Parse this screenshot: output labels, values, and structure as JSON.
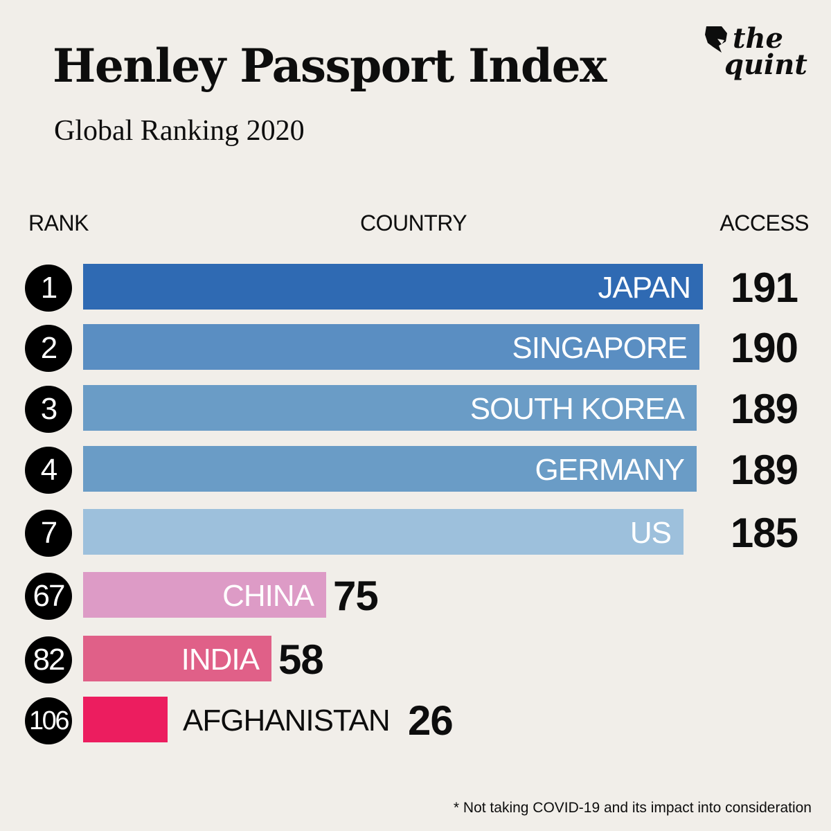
{
  "header": {
    "title": "Henley Passport Index",
    "subtitle": "Global Ranking 2020"
  },
  "logo": {
    "line1": "the",
    "line2": "quint"
  },
  "columns": {
    "rank": "RANK",
    "country": "COUNTRY",
    "access": "ACCESS"
  },
  "footnote": "* Not taking COVID-19 and its impact into consideration",
  "chart_data": {
    "type": "bar",
    "orientation": "horizontal",
    "title": "Henley Passport Index",
    "subtitle": "Global Ranking 2020",
    "xlabel": "ACCESS",
    "ylabel": "COUNTRY",
    "grid": false,
    "categories": [
      "JAPAN",
      "SINGAPORE",
      "SOUTH KOREA",
      "GERMANY",
      "US",
      "CHINA",
      "INDIA",
      "AFGHANISTAN"
    ],
    "ranks": [
      "1",
      "2",
      "3",
      "4",
      "7",
      "67",
      "82",
      "106"
    ],
    "values": [
      191,
      190,
      189,
      189,
      185,
      75,
      58,
      26
    ],
    "colors": [
      "#2f6ab3",
      "#5a8ec2",
      "#6a9cc6",
      "#6a9cc6",
      "#9dc0dc",
      "#dd9bc6",
      "#e06088",
      "#ec1d5f"
    ]
  }
}
